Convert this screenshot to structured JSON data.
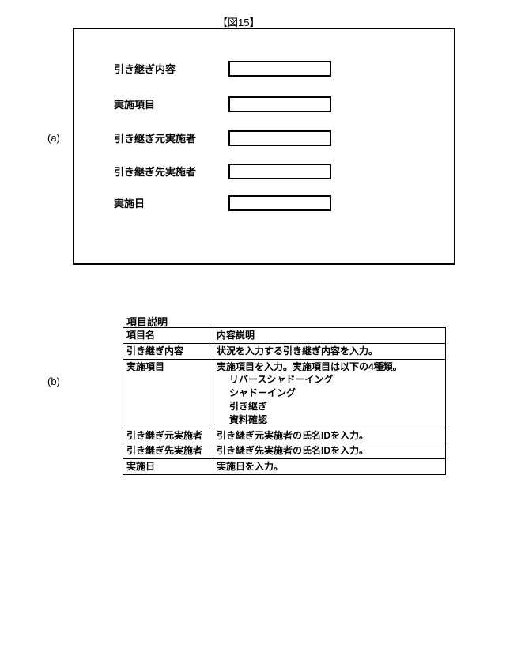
{
  "figure_label": "【図15】",
  "panel_a_marker": "(a)",
  "panel_b_marker": "(b)",
  "form": {
    "rows": [
      {
        "label": "引き継ぎ内容"
      },
      {
        "label": "実施項目"
      },
      {
        "label": "引き継ぎ元実施者"
      },
      {
        "label": "引き継ぎ先実施者"
      },
      {
        "label": "実施日"
      }
    ]
  },
  "table": {
    "title": "項目説明",
    "header": {
      "col1": "項目名",
      "col2": "内容説明"
    },
    "rows": [
      {
        "name": "引き継ぎ内容",
        "desc": "状況を入力する引き継ぎ内容を入力。"
      },
      {
        "name": "実施項目",
        "desc_main": "実施項目を入力。実施項目は以下の4種類。",
        "subs": [
          "リバースシャドーイング",
          "シャドーイング",
          "引き継ぎ",
          "資料確認"
        ]
      },
      {
        "name": "引き継ぎ元実施者",
        "desc": "引き継ぎ元実施者の氏名IDを入力。"
      },
      {
        "name": "引き継ぎ先実施者",
        "desc": "引き継ぎ先実施者の氏名IDを入力。"
      },
      {
        "name": "実施日",
        "desc": "実施日を入力。"
      }
    ]
  }
}
